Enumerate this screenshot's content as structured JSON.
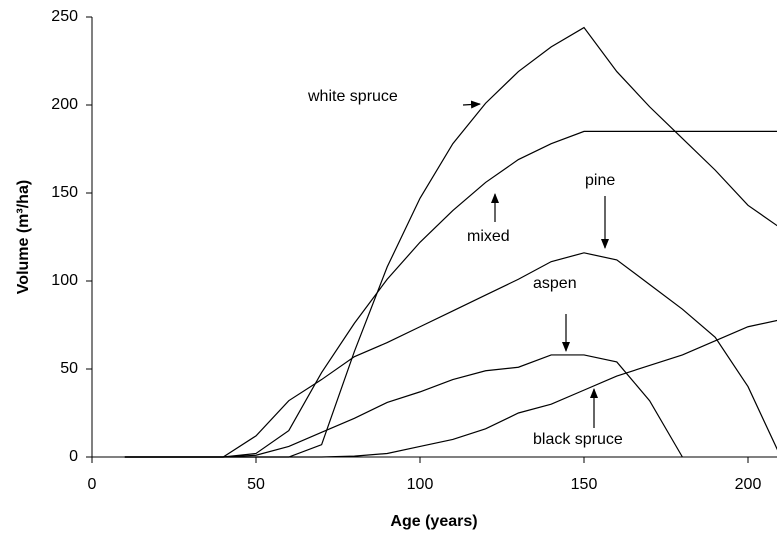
{
  "chart_data": {
    "type": "line",
    "x_label": "Age (years)",
    "y_label": "Volume (m³/ha)",
    "x": [
      10,
      20,
      30,
      40,
      50,
      60,
      70,
      80,
      90,
      100,
      110,
      120,
      130,
      140,
      150,
      160,
      170,
      180,
      190,
      200,
      210
    ],
    "series": [
      {
        "name": "white spruce",
        "color": "#000000",
        "values": [
          0,
          0,
          0,
          0,
          0,
          0,
          7,
          60,
          108,
          147,
          178,
          201,
          219,
          233,
          244,
          219,
          199,
          181,
          163,
          143,
          130
        ]
      },
      {
        "name": "mixed",
        "color": "#000000",
        "values": [
          0,
          0,
          0,
          0,
          2,
          15,
          48,
          76,
          101,
          122,
          140,
          156,
          169,
          178,
          185,
          185,
          185,
          185,
          185,
          185,
          185
        ]
      },
      {
        "name": "pine",
        "color": "#000000",
        "values": [
          0,
          0,
          0,
          0,
          12,
          32,
          44,
          57,
          65,
          74,
          83,
          92,
          101,
          111,
          116,
          112,
          98,
          84,
          68,
          40,
          0
        ]
      },
      {
        "name": "aspen",
        "color": "#000000",
        "values": [
          0,
          0,
          0,
          0,
          1,
          6,
          14,
          22,
          31,
          37,
          44,
          49,
          51,
          58,
          58,
          54,
          32,
          0,
          null,
          null,
          null
        ]
      },
      {
        "name": "black spruce",
        "color": "#000000",
        "values": [
          0,
          0,
          0,
          0,
          0,
          0,
          0,
          0.5,
          2,
          6,
          10,
          16,
          25,
          30,
          38,
          46,
          52,
          58,
          66,
          74,
          78
        ]
      }
    ],
    "xlim": [
      0,
      208
    ],
    "xticks": [
      0,
      50,
      100,
      150,
      200
    ],
    "ylim": [
      0,
      250
    ],
    "yticks": [
      0,
      50,
      100,
      150,
      200,
      250
    ],
    "grid": false
  }
}
